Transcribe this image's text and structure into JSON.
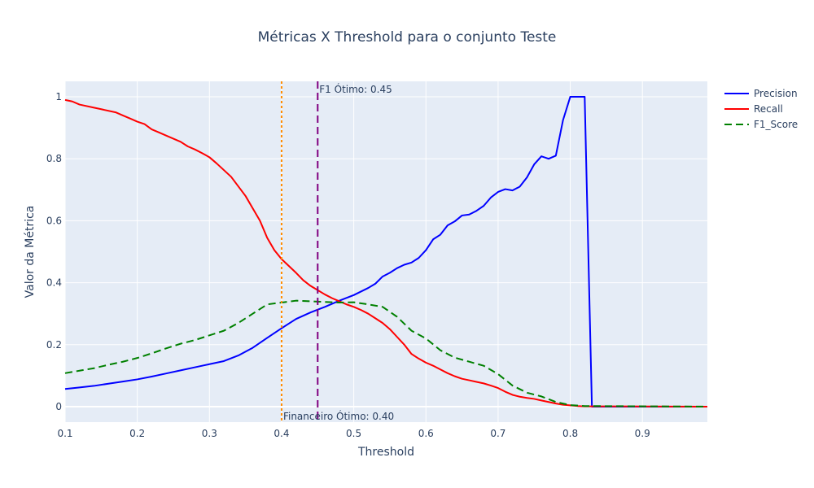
{
  "chart_data": {
    "type": "line",
    "title": "Métricas X Threshold para o conjunto Teste",
    "xlabel": "Threshold",
    "ylabel": "Valor da Métrica",
    "xlim": [
      0.1,
      0.99
    ],
    "ylim": [
      -0.05,
      1.05
    ],
    "x_ticks": [
      0.1,
      0.2,
      0.3,
      0.4,
      0.5,
      0.6,
      0.7,
      0.8,
      0.9
    ],
    "y_ticks": [
      0,
      0.2,
      0.4,
      0.6,
      0.8,
      1
    ],
    "grid": true,
    "legend_position": "top-right",
    "background_color": "#e5ecf6",
    "series": [
      {
        "name": "Precision",
        "color": "#0000ff",
        "dash": "solid",
        "x": [
          0.1,
          0.12,
          0.14,
          0.16,
          0.18,
          0.2,
          0.22,
          0.24,
          0.26,
          0.28,
          0.3,
          0.32,
          0.34,
          0.36,
          0.38,
          0.4,
          0.42,
          0.44,
          0.46,
          0.48,
          0.5,
          0.52,
          0.53,
          0.54,
          0.55,
          0.56,
          0.57,
          0.58,
          0.59,
          0.6,
          0.61,
          0.62,
          0.63,
          0.64,
          0.65,
          0.66,
          0.67,
          0.68,
          0.69,
          0.7,
          0.71,
          0.72,
          0.73,
          0.74,
          0.75,
          0.76,
          0.77,
          0.78,
          0.79,
          0.8,
          0.81,
          0.82,
          0.83,
          0.84,
          0.99
        ],
        "y": [
          0.057,
          0.062,
          0.067,
          0.074,
          0.081,
          0.088,
          0.097,
          0.107,
          0.117,
          0.127,
          0.137,
          0.147,
          0.165,
          0.19,
          0.222,
          0.253,
          0.283,
          0.304,
          0.322,
          0.342,
          0.36,
          0.383,
          0.397,
          0.42,
          0.432,
          0.447,
          0.458,
          0.465,
          0.48,
          0.505,
          0.54,
          0.555,
          0.585,
          0.598,
          0.617,
          0.62,
          0.632,
          0.648,
          0.675,
          0.693,
          0.702,
          0.698,
          0.71,
          0.74,
          0.782,
          0.808,
          0.8,
          0.81,
          0.925,
          1.0,
          1.0,
          1.0,
          0.0,
          0.0,
          0.0
        ]
      },
      {
        "name": "Recall",
        "color": "#ff0000",
        "dash": "solid",
        "x": [
          0.1,
          0.11,
          0.12,
          0.14,
          0.15,
          0.17,
          0.18,
          0.19,
          0.2,
          0.21,
          0.22,
          0.23,
          0.24,
          0.26,
          0.27,
          0.28,
          0.29,
          0.3,
          0.31,
          0.33,
          0.35,
          0.37,
          0.38,
          0.39,
          0.4,
          0.42,
          0.43,
          0.44,
          0.46,
          0.47,
          0.48,
          0.49,
          0.5,
          0.51,
          0.52,
          0.53,
          0.54,
          0.55,
          0.56,
          0.57,
          0.58,
          0.59,
          0.6,
          0.61,
          0.62,
          0.63,
          0.64,
          0.65,
          0.66,
          0.67,
          0.68,
          0.69,
          0.7,
          0.71,
          0.72,
          0.73,
          0.74,
          0.75,
          0.76,
          0.77,
          0.78,
          0.79,
          0.8,
          0.81,
          0.82,
          0.99
        ],
        "y": [
          0.99,
          0.985,
          0.975,
          0.965,
          0.96,
          0.95,
          0.94,
          0.93,
          0.92,
          0.912,
          0.895,
          0.885,
          0.875,
          0.855,
          0.84,
          0.83,
          0.818,
          0.805,
          0.785,
          0.742,
          0.68,
          0.6,
          0.545,
          0.505,
          0.476,
          0.432,
          0.408,
          0.39,
          0.362,
          0.35,
          0.34,
          0.33,
          0.322,
          0.312,
          0.3,
          0.285,
          0.27,
          0.25,
          0.225,
          0.2,
          0.17,
          0.155,
          0.142,
          0.132,
          0.12,
          0.108,
          0.098,
          0.09,
          0.085,
          0.08,
          0.075,
          0.068,
          0.06,
          0.048,
          0.038,
          0.032,
          0.028,
          0.025,
          0.02,
          0.015,
          0.01,
          0.006,
          0.004,
          0.002,
          0.001,
          0.0
        ]
      },
      {
        "name": "F1_Score",
        "color": "#008000",
        "dash": "dash",
        "x": [
          0.1,
          0.12,
          0.14,
          0.16,
          0.18,
          0.2,
          0.22,
          0.24,
          0.26,
          0.28,
          0.3,
          0.32,
          0.34,
          0.36,
          0.38,
          0.4,
          0.42,
          0.44,
          0.46,
          0.48,
          0.5,
          0.52,
          0.54,
          0.56,
          0.58,
          0.6,
          0.62,
          0.64,
          0.66,
          0.68,
          0.7,
          0.72,
          0.74,
          0.76,
          0.78,
          0.8,
          0.82,
          0.99
        ],
        "y": [
          0.108,
          0.116,
          0.124,
          0.135,
          0.145,
          0.157,
          0.172,
          0.188,
          0.203,
          0.215,
          0.23,
          0.245,
          0.27,
          0.3,
          0.33,
          0.336,
          0.342,
          0.34,
          0.338,
          0.336,
          0.337,
          0.33,
          0.322,
          0.29,
          0.245,
          0.22,
          0.182,
          0.158,
          0.145,
          0.132,
          0.105,
          0.068,
          0.045,
          0.033,
          0.015,
          0.005,
          0.002,
          0.0
        ]
      }
    ],
    "annotations": [
      {
        "name": "F1 Ótimo",
        "label": "F1 Ótimo: 0.45",
        "x": 0.45,
        "color": "#800080",
        "dash": "dash",
        "label_position": "top"
      },
      {
        "name": "Financeiro Ótimo",
        "label": "Financeiro Ótimo: 0.40",
        "x": 0.4,
        "color": "#ff8c00",
        "dash": "dot",
        "label_position": "bottom"
      }
    ]
  }
}
